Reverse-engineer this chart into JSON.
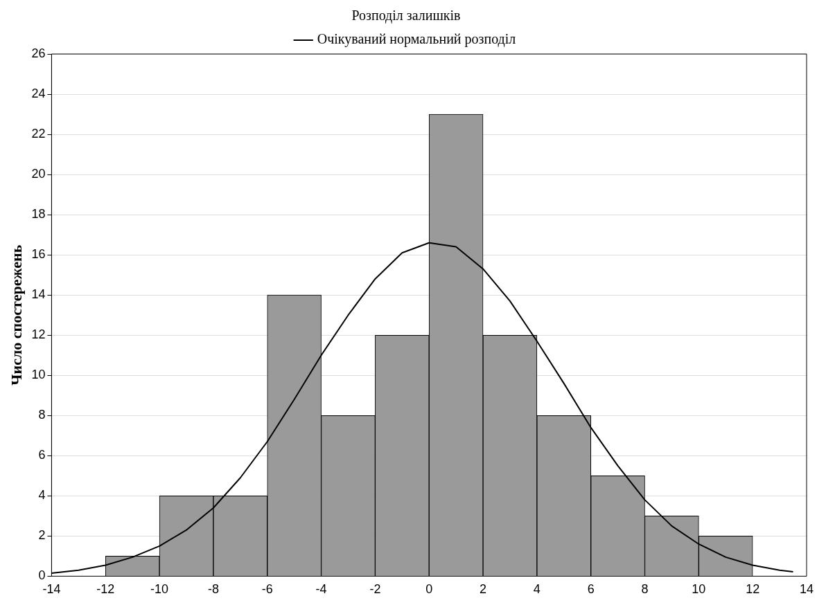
{
  "chart_data": {
    "type": "histogram",
    "title": "Розподіл залишків",
    "ylabel": "Число спостережень",
    "bins": [
      -12,
      -10,
      -8,
      -6,
      -4,
      -2,
      0,
      2,
      4,
      6,
      8,
      10,
      12
    ],
    "values": [
      1,
      4,
      4,
      14,
      8,
      12,
      23,
      12,
      8,
      5,
      3,
      2
    ],
    "color": "#9a9a9a",
    "series": [
      {
        "name": "Очікуваний нормальний розподіл",
        "type": "line",
        "color": "#000000",
        "x": [
          -14,
          -13,
          -12,
          -11,
          -10,
          -9,
          -8,
          -7,
          -6,
          -5,
          -4,
          -3,
          -2,
          -1,
          0,
          1,
          2,
          3,
          4,
          5,
          6,
          7,
          8,
          9,
          10,
          11,
          12,
          13,
          13.5
        ],
        "values": [
          0.15,
          0.3,
          0.55,
          0.95,
          1.5,
          2.3,
          3.4,
          4.9,
          6.7,
          8.8,
          11.0,
          13.0,
          14.8,
          16.1,
          16.6,
          16.4,
          15.3,
          13.7,
          11.7,
          9.6,
          7.4,
          5.5,
          3.8,
          2.5,
          1.6,
          0.95,
          0.55,
          0.3,
          0.22
        ]
      }
    ],
    "xlim": [
      -14,
      14
    ],
    "xticks": [
      -14,
      -12,
      -10,
      -8,
      -6,
      -4,
      -2,
      0,
      2,
      4,
      6,
      8,
      10,
      12,
      14
    ],
    "ylim": [
      0,
      26
    ],
    "yticks": [
      0,
      2,
      4,
      6,
      8,
      10,
      12,
      14,
      16,
      18,
      20,
      22,
      24,
      26
    ],
    "grid": "y",
    "legend": "top",
    "marker": "none",
    "line_style": "solid"
  }
}
